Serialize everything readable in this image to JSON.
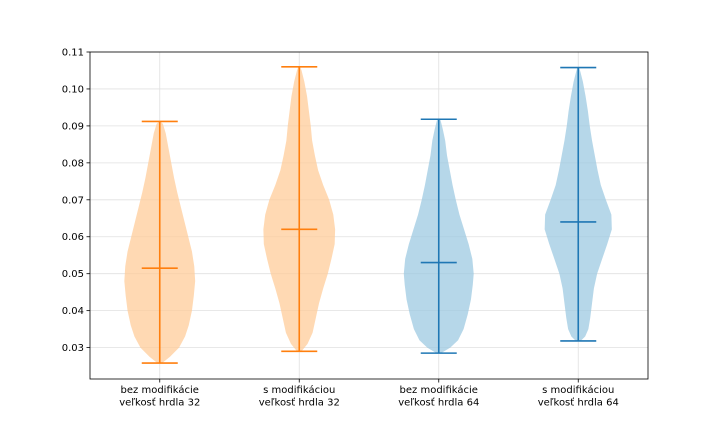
{
  "chart_data": {
    "type": "violin",
    "categories": [
      [
        "bez modifikácie",
        "veľkosť hrdla 32"
      ],
      [
        "s modifikáciou",
        "veľkosť hrdla 32"
      ],
      [
        "bez modifikácie",
        "veľkosť hrdla 64"
      ],
      [
        "s modifikáciou",
        "veľkosť hrdla 64"
      ]
    ],
    "ylim": [
      0.0215,
      0.11
    ],
    "yticks": [
      "0.03",
      "0.04",
      "0.05",
      "0.06",
      "0.07",
      "0.08",
      "0.09",
      "0.10",
      "0.11"
    ],
    "grid": true,
    "colors": {
      "orange_fill": "#ffcc99",
      "orange_line": "#ff7f0e",
      "blue_fill": "#9ecae1",
      "blue_line": "#1f77b4"
    },
    "violins": [
      {
        "color": "orange",
        "min": 0.0258,
        "max": 0.0912,
        "median": 0.0515,
        "density": [
          [
            0.0258,
            0.05
          ],
          [
            0.0275,
            0.22
          ],
          [
            0.03,
            0.42
          ],
          [
            0.033,
            0.55
          ],
          [
            0.036,
            0.63
          ],
          [
            0.04,
            0.7
          ],
          [
            0.044,
            0.74
          ],
          [
            0.048,
            0.77
          ],
          [
            0.052,
            0.75
          ],
          [
            0.056,
            0.7
          ],
          [
            0.06,
            0.62
          ],
          [
            0.064,
            0.54
          ],
          [
            0.068,
            0.46
          ],
          [
            0.072,
            0.38
          ],
          [
            0.076,
            0.31
          ],
          [
            0.08,
            0.25
          ],
          [
            0.084,
            0.19
          ],
          [
            0.088,
            0.13
          ],
          [
            0.0905,
            0.07
          ],
          [
            0.0912,
            0.02
          ]
        ]
      },
      {
        "color": "orange",
        "min": 0.029,
        "max": 0.106,
        "median": 0.062,
        "density": [
          [
            0.029,
            0.05
          ],
          [
            0.031,
            0.18
          ],
          [
            0.034,
            0.29
          ],
          [
            0.038,
            0.36
          ],
          [
            0.042,
            0.43
          ],
          [
            0.046,
            0.52
          ],
          [
            0.05,
            0.62
          ],
          [
            0.054,
            0.7
          ],
          [
            0.058,
            0.77
          ],
          [
            0.062,
            0.78
          ],
          [
            0.066,
            0.74
          ],
          [
            0.07,
            0.65
          ],
          [
            0.074,
            0.52
          ],
          [
            0.078,
            0.41
          ],
          [
            0.082,
            0.34
          ],
          [
            0.086,
            0.28
          ],
          [
            0.09,
            0.25
          ],
          [
            0.094,
            0.21
          ],
          [
            0.098,
            0.17
          ],
          [
            0.102,
            0.11
          ],
          [
            0.105,
            0.05
          ],
          [
            0.106,
            0.02
          ]
        ]
      },
      {
        "color": "blue",
        "min": 0.0285,
        "max": 0.0918,
        "median": 0.053,
        "density": [
          [
            0.0285,
            0.05
          ],
          [
            0.03,
            0.25
          ],
          [
            0.032,
            0.42
          ],
          [
            0.035,
            0.54
          ],
          [
            0.039,
            0.63
          ],
          [
            0.043,
            0.7
          ],
          [
            0.047,
            0.74
          ],
          [
            0.05,
            0.76
          ],
          [
            0.054,
            0.73
          ],
          [
            0.058,
            0.65
          ],
          [
            0.062,
            0.55
          ],
          [
            0.066,
            0.45
          ],
          [
            0.07,
            0.37
          ],
          [
            0.074,
            0.3
          ],
          [
            0.078,
            0.24
          ],
          [
            0.082,
            0.18
          ],
          [
            0.086,
            0.14
          ],
          [
            0.089,
            0.09
          ],
          [
            0.0915,
            0.04
          ],
          [
            0.0918,
            0.02
          ]
        ]
      },
      {
        "color": "blue",
        "min": 0.0318,
        "max": 0.1058,
        "median": 0.064,
        "density": [
          [
            0.0318,
            0.05
          ],
          [
            0.033,
            0.15
          ],
          [
            0.035,
            0.22
          ],
          [
            0.038,
            0.26
          ],
          [
            0.042,
            0.3
          ],
          [
            0.046,
            0.34
          ],
          [
            0.05,
            0.41
          ],
          [
            0.054,
            0.52
          ],
          [
            0.058,
            0.63
          ],
          [
            0.062,
            0.73
          ],
          [
            0.066,
            0.72
          ],
          [
            0.07,
            0.6
          ],
          [
            0.074,
            0.49
          ],
          [
            0.078,
            0.42
          ],
          [
            0.082,
            0.36
          ],
          [
            0.086,
            0.3
          ],
          [
            0.09,
            0.25
          ],
          [
            0.094,
            0.21
          ],
          [
            0.098,
            0.16
          ],
          [
            0.102,
            0.1
          ],
          [
            0.1045,
            0.05
          ],
          [
            0.1058,
            0.02
          ]
        ]
      }
    ]
  }
}
